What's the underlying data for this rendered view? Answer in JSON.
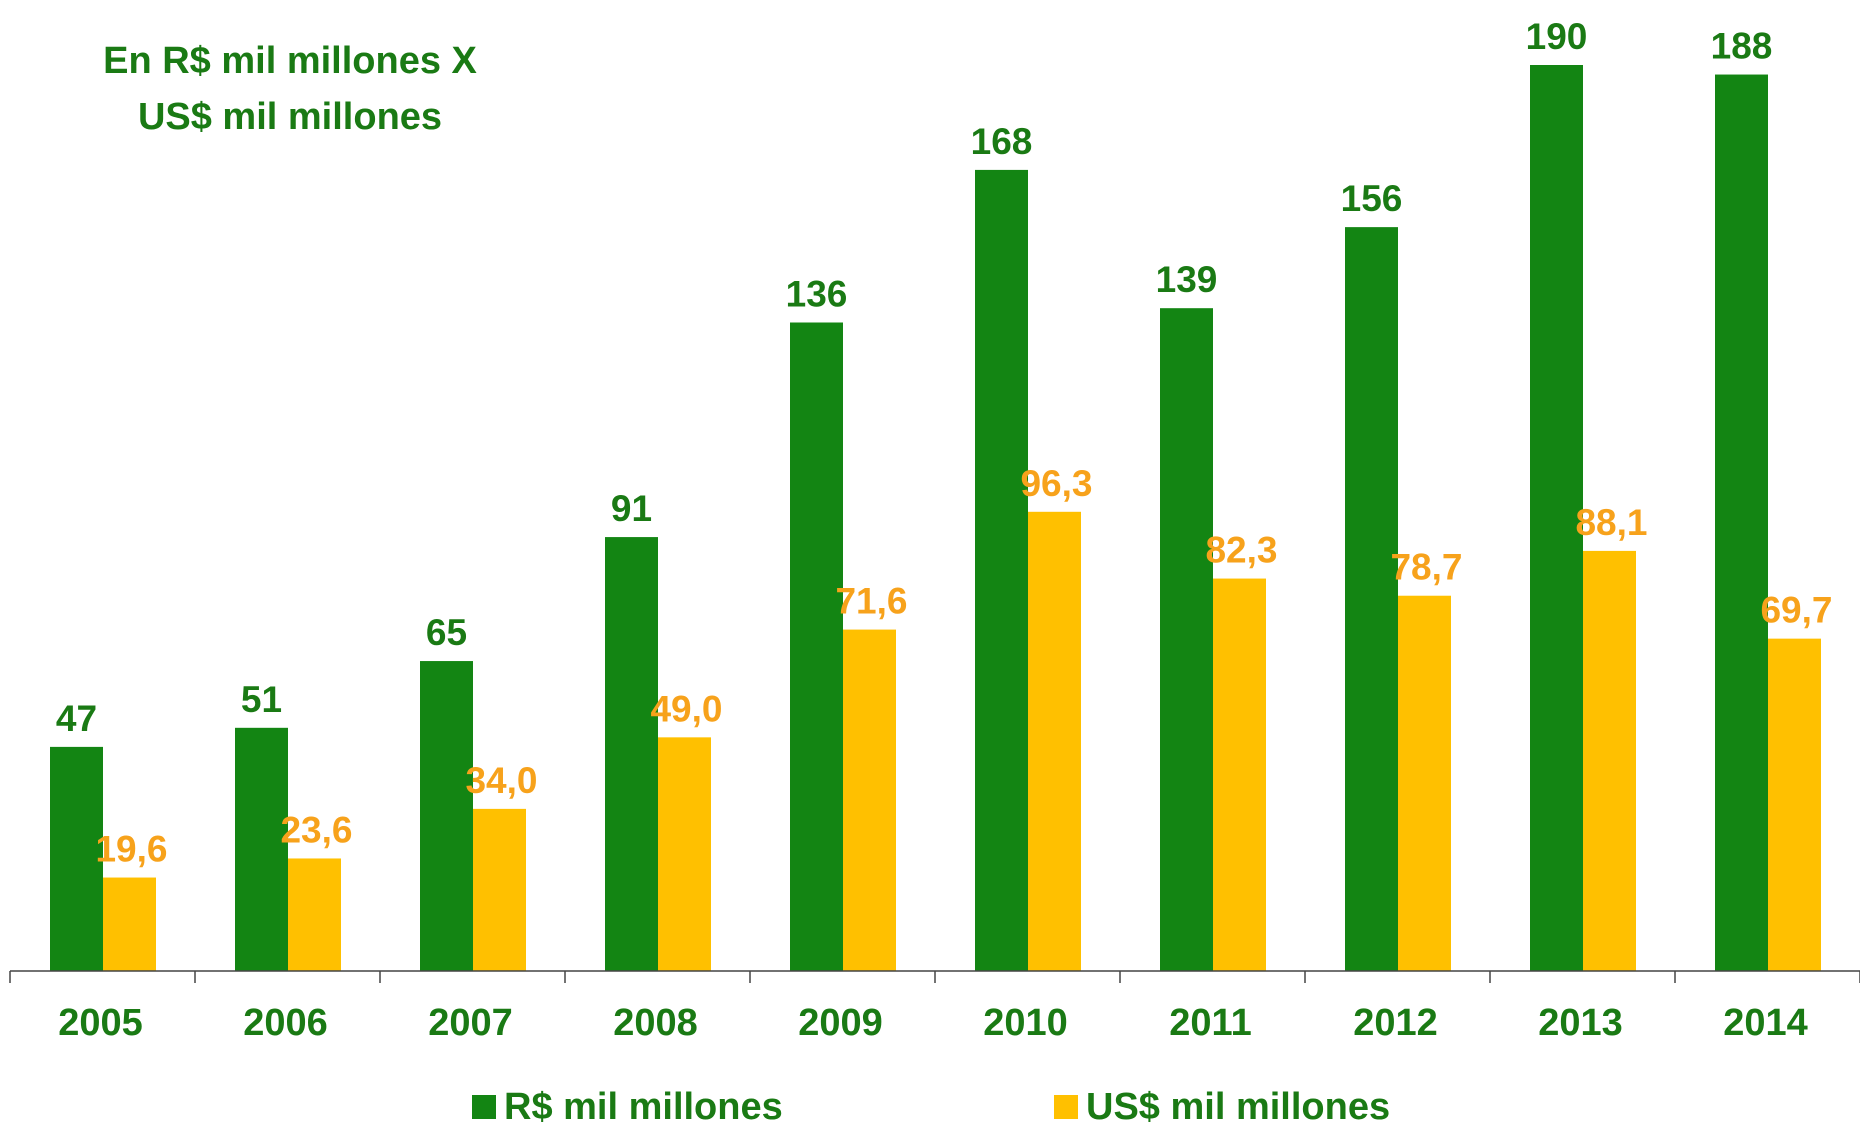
{
  "chart_data": {
    "type": "bar",
    "title": "En R$ mil millones X",
    "subtitle": "US$ mil millones",
    "categories": [
      "2005",
      "2006",
      "2007",
      "2008",
      "2009",
      "2010",
      "2011",
      "2012",
      "2013",
      "2014"
    ],
    "series": [
      {
        "name": "R$ mil millones",
        "color": "#138513",
        "values": [
          47,
          51,
          65,
          91,
          136,
          168,
          139,
          156,
          190,
          188
        ],
        "labels": [
          "47",
          "51",
          "65",
          "91",
          "136",
          "168",
          "139",
          "156",
          "190",
          "188"
        ]
      },
      {
        "name": "US$ mil millones",
        "color": "#ffc000",
        "values": [
          19.6,
          23.6,
          34.0,
          49.0,
          71.6,
          96.3,
          82.3,
          78.7,
          88.1,
          69.7
        ],
        "labels": [
          "19,6",
          "23,6",
          "34,0",
          "49,0",
          "71,6",
          "96,3",
          "82,3",
          "78,7",
          "88,1",
          "69,7"
        ]
      }
    ],
    "ylim": [
      0,
      190
    ],
    "xlabel": "",
    "ylabel": "",
    "grid": false,
    "legend_position": "bottom",
    "colors": {
      "axis_text": "#1a7a14",
      "series_a_label": "#1a7a14",
      "series_b_label": "#f7a21b"
    }
  }
}
